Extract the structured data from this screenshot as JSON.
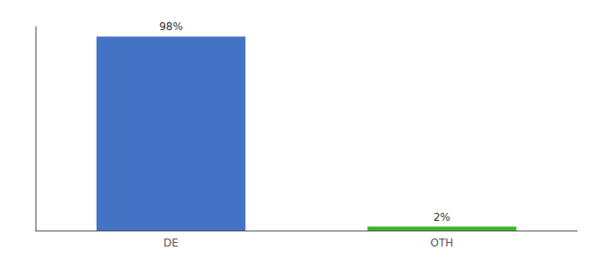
{
  "chart_data": {
    "type": "bar",
    "categories": [
      "DE",
      "OTH"
    ],
    "values": [
      98,
      2
    ],
    "value_labels": [
      "98%",
      "2%"
    ],
    "colors": [
      "#4472c4",
      "#3cb828"
    ],
    "ylim": [
      0,
      103
    ],
    "data_labels": true,
    "tick_labels": "x",
    "grid": false
  }
}
